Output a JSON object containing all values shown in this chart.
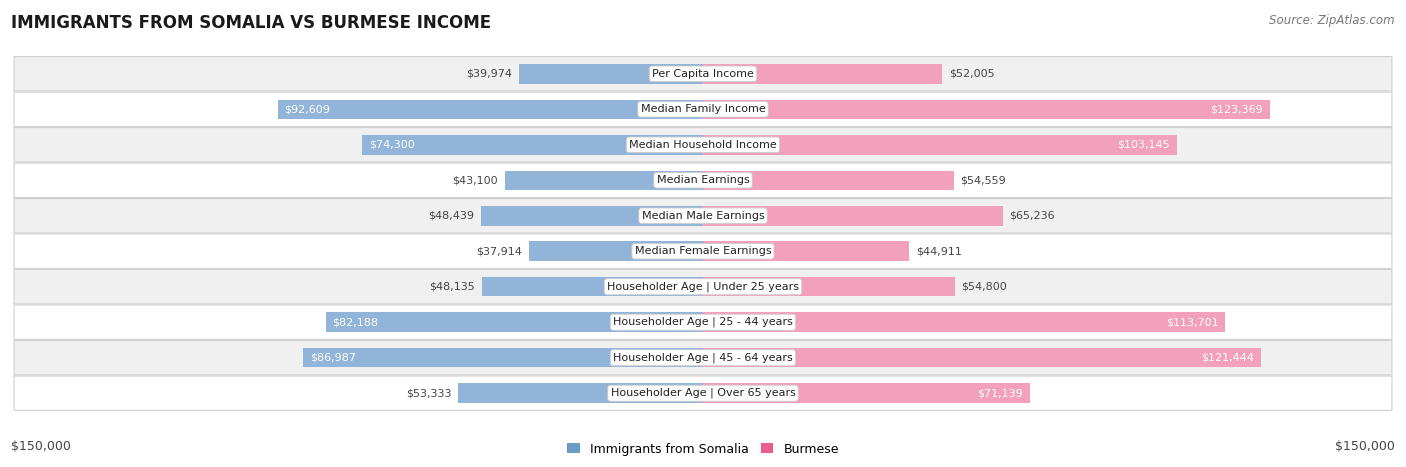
{
  "title": "IMMIGRANTS FROM SOMALIA VS BURMESE INCOME",
  "source": "Source: ZipAtlas.com",
  "categories": [
    "Per Capita Income",
    "Median Family Income",
    "Median Household Income",
    "Median Earnings",
    "Median Male Earnings",
    "Median Female Earnings",
    "Householder Age | Under 25 years",
    "Householder Age | 25 - 44 years",
    "Householder Age | 45 - 64 years",
    "Householder Age | Over 65 years"
  ],
  "somalia_values": [
    39974,
    92609,
    74300,
    43100,
    48439,
    37914,
    48135,
    82188,
    86987,
    53333
  ],
  "burmese_values": [
    52005,
    123369,
    103145,
    54559,
    65236,
    44911,
    54800,
    113701,
    121444,
    71139
  ],
  "somalia_labels": [
    "$39,974",
    "$92,609",
    "$74,300",
    "$43,100",
    "$48,439",
    "$37,914",
    "$48,135",
    "$82,188",
    "$86,987",
    "$53,333"
  ],
  "burmese_labels": [
    "$52,005",
    "$123,369",
    "$103,145",
    "$54,559",
    "$65,236",
    "$44,911",
    "$54,800",
    "$113,701",
    "$121,444",
    "$71,139"
  ],
  "max_value": 150000,
  "somalia_color": "#92b4d8",
  "somalia_color_legend": "#6a9cc8",
  "burmese_color": "#f2a0bb",
  "burmese_color_legend": "#e8608a",
  "label_somalia": "Immigrants from Somalia",
  "label_burmese": "Burmese",
  "x_label_left": "$150,000",
  "x_label_right": "$150,000",
  "row_bg_even": "#f0f0f0",
  "row_bg_odd": "#ffffff",
  "row_edge_color": "#d0d0d0",
  "title_fontsize": 12,
  "source_fontsize": 8.5,
  "bar_label_fontsize": 8,
  "category_fontsize": 8,
  "inside_label_color_somalia": "white",
  "inside_label_color_burmese": "white",
  "outside_label_color": "#444444",
  "somalia_inside_threshold": 55000,
  "burmese_inside_threshold": 70000
}
